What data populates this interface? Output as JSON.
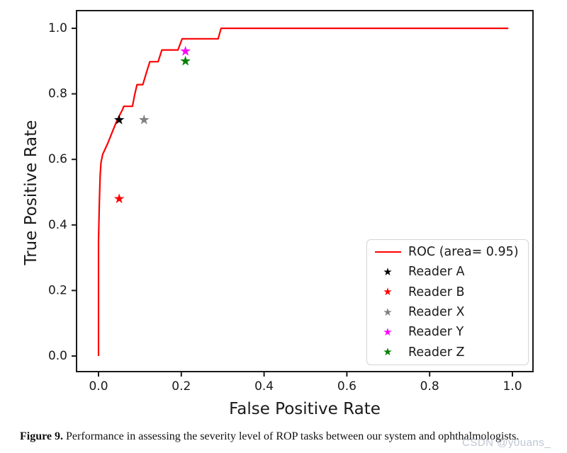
{
  "figure": {
    "caption_label": "Figure 9.",
    "caption_text": " Performance in assessing the severity level of ROP tasks between our system and ophthalmologists.",
    "watermark": "CSDN @y0uans_"
  },
  "icons": {
    "star_glyph": "★"
  },
  "chart_data": {
    "type": "line",
    "title": "",
    "xlabel": "False Positive Rate",
    "ylabel": "True Positive Rate",
    "xlim": [
      -0.05,
      1.05
    ],
    "ylim": [
      -0.05,
      1.05
    ],
    "x_ticks": [
      "0.0",
      "0.2",
      "0.4",
      "0.6",
      "0.8",
      "1.0"
    ],
    "y_ticks": [
      "0.0",
      "0.2",
      "0.4",
      "0.6",
      "0.8",
      "1.0"
    ],
    "grid": false,
    "legend_position": "lower right",
    "roc": {
      "label": "ROC (area= 0.95)",
      "auc": 0.95,
      "color": "#ff0000",
      "points": [
        [
          0.0,
          0.0
        ],
        [
          0.0,
          0.35
        ],
        [
          0.002,
          0.47
        ],
        [
          0.004,
          0.55
        ],
        [
          0.006,
          0.59
        ],
        [
          0.01,
          0.615
        ],
        [
          0.022,
          0.648
        ],
        [
          0.033,
          0.683
        ],
        [
          0.045,
          0.72
        ],
        [
          0.058,
          0.752
        ],
        [
          0.061,
          0.762
        ],
        [
          0.082,
          0.762
        ],
        [
          0.087,
          0.795
        ],
        [
          0.093,
          0.828
        ],
        [
          0.107,
          0.828
        ],
        [
          0.115,
          0.862
        ],
        [
          0.124,
          0.898
        ],
        [
          0.144,
          0.898
        ],
        [
          0.153,
          0.934
        ],
        [
          0.192,
          0.934
        ],
        [
          0.202,
          0.968
        ],
        [
          0.289,
          0.968
        ],
        [
          0.296,
          1.0
        ],
        [
          0.99,
          1.0
        ]
      ]
    },
    "readers": [
      {
        "label": "Reader A",
        "color": "#000000",
        "fpr": 0.05,
        "tpr": 0.72
      },
      {
        "label": "Reader B",
        "color": "#ff0000",
        "fpr": 0.05,
        "tpr": 0.48
      },
      {
        "label": "Reader X",
        "color": "#808080",
        "fpr": 0.11,
        "tpr": 0.72
      },
      {
        "label": "Reader Y",
        "color": "#ff00ff",
        "fpr": 0.21,
        "tpr": 0.93
      },
      {
        "label": "Reader Z",
        "color": "#008000",
        "fpr": 0.21,
        "tpr": 0.9
      }
    ]
  }
}
